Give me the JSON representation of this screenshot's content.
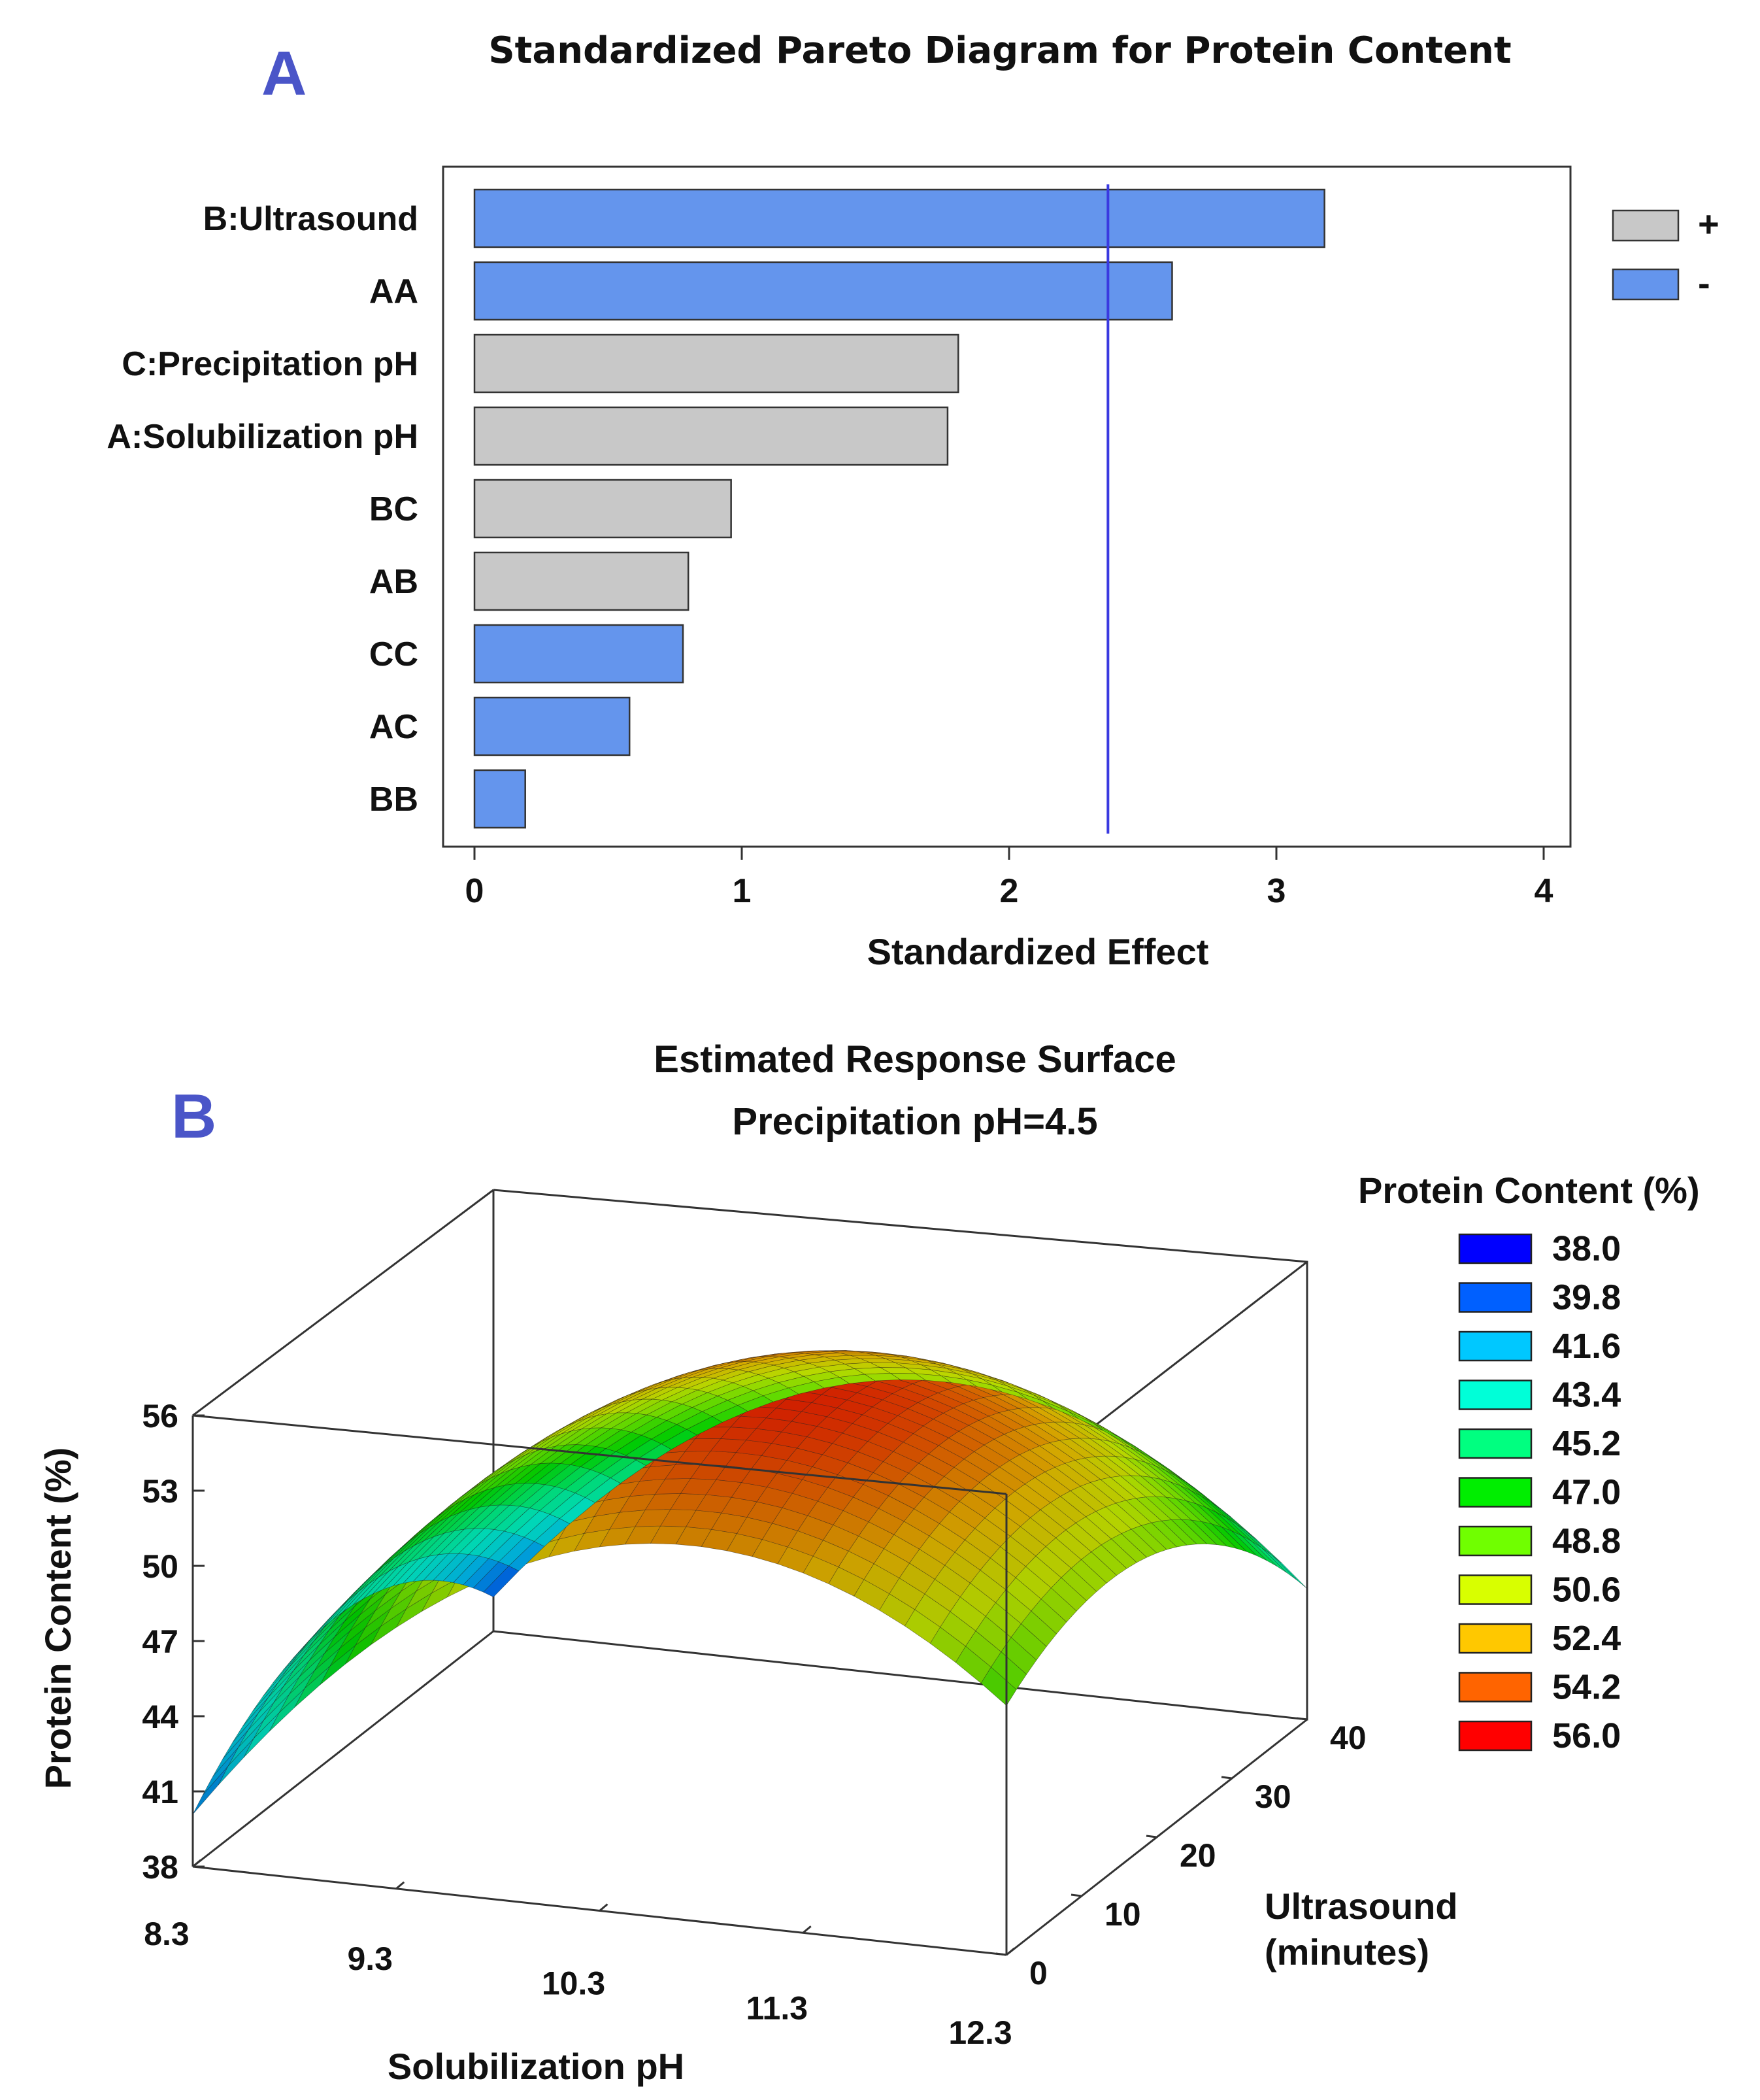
{
  "panelA": {
    "letter": "A",
    "chart_data": {
      "type": "bar",
      "orientation": "horizontal",
      "title": "Standardized Pareto Diagram for Protein Content",
      "xlabel": "Standardized Effect",
      "ylabel": "",
      "xlim": [
        0,
        4
      ],
      "xticks": [
        "0",
        "1",
        "2",
        "3",
        "4"
      ],
      "categories": [
        "B:Ultrasound",
        "AA",
        "C:Precipitation pH",
        "A:Solubilization pH",
        "BC",
        "AB",
        "CC",
        "AC",
        "BB"
      ],
      "values": [
        3.18,
        2.61,
        1.81,
        1.77,
        0.96,
        0.8,
        0.78,
        0.58,
        0.19
      ],
      "signs": [
        "-",
        "-",
        "+",
        "+",
        "+",
        "+",
        "-",
        "-",
        "-"
      ],
      "reference_line": 2.37,
      "legend": [
        {
          "label": "+",
          "color": "#c8c8c8"
        },
        {
          "label": "-",
          "color": "#6495ed"
        }
      ],
      "legend_position": "top-right"
    }
  },
  "panelB": {
    "letter": "B",
    "chart_data": {
      "type": "surface",
      "title": "Estimated Response Surface",
      "subtitle": "Precipitation pH=4.5",
      "zlabel": "Protein Content (%)",
      "xlabel": "Solubilization pH",
      "ylabel": "Ultrasound (minutes)",
      "ylabel_line1": "Ultrasound",
      "ylabel_line2": "(minutes)",
      "zticks": [
        "56",
        "53",
        "50",
        "47",
        "44",
        "41",
        "38"
      ],
      "xticks": [
        "8.3",
        "9.3",
        "10.3",
        "11.3",
        "12.3"
      ],
      "yticks": [
        "0",
        "10",
        "20",
        "30",
        "40"
      ],
      "zlim": [
        38,
        56
      ],
      "xlim": [
        8.3,
        12.3
      ],
      "ylim": [
        0,
        40
      ],
      "legend_title": "Protein Content (%)",
      "legend_levels": [
        "38.0",
        "39.8",
        "41.6",
        "43.4",
        "45.2",
        "47.0",
        "48.8",
        "50.6",
        "52.4",
        "54.2",
        "56.0"
      ],
      "legend_colors": [
        "#0000ff",
        "#0060ff",
        "#00c8ff",
        "#00ffd8",
        "#00ff80",
        "#00ee00",
        "#70ff00",
        "#d8ff00",
        "#ffc800",
        "#ff6400",
        "#ff0000"
      ]
    }
  }
}
